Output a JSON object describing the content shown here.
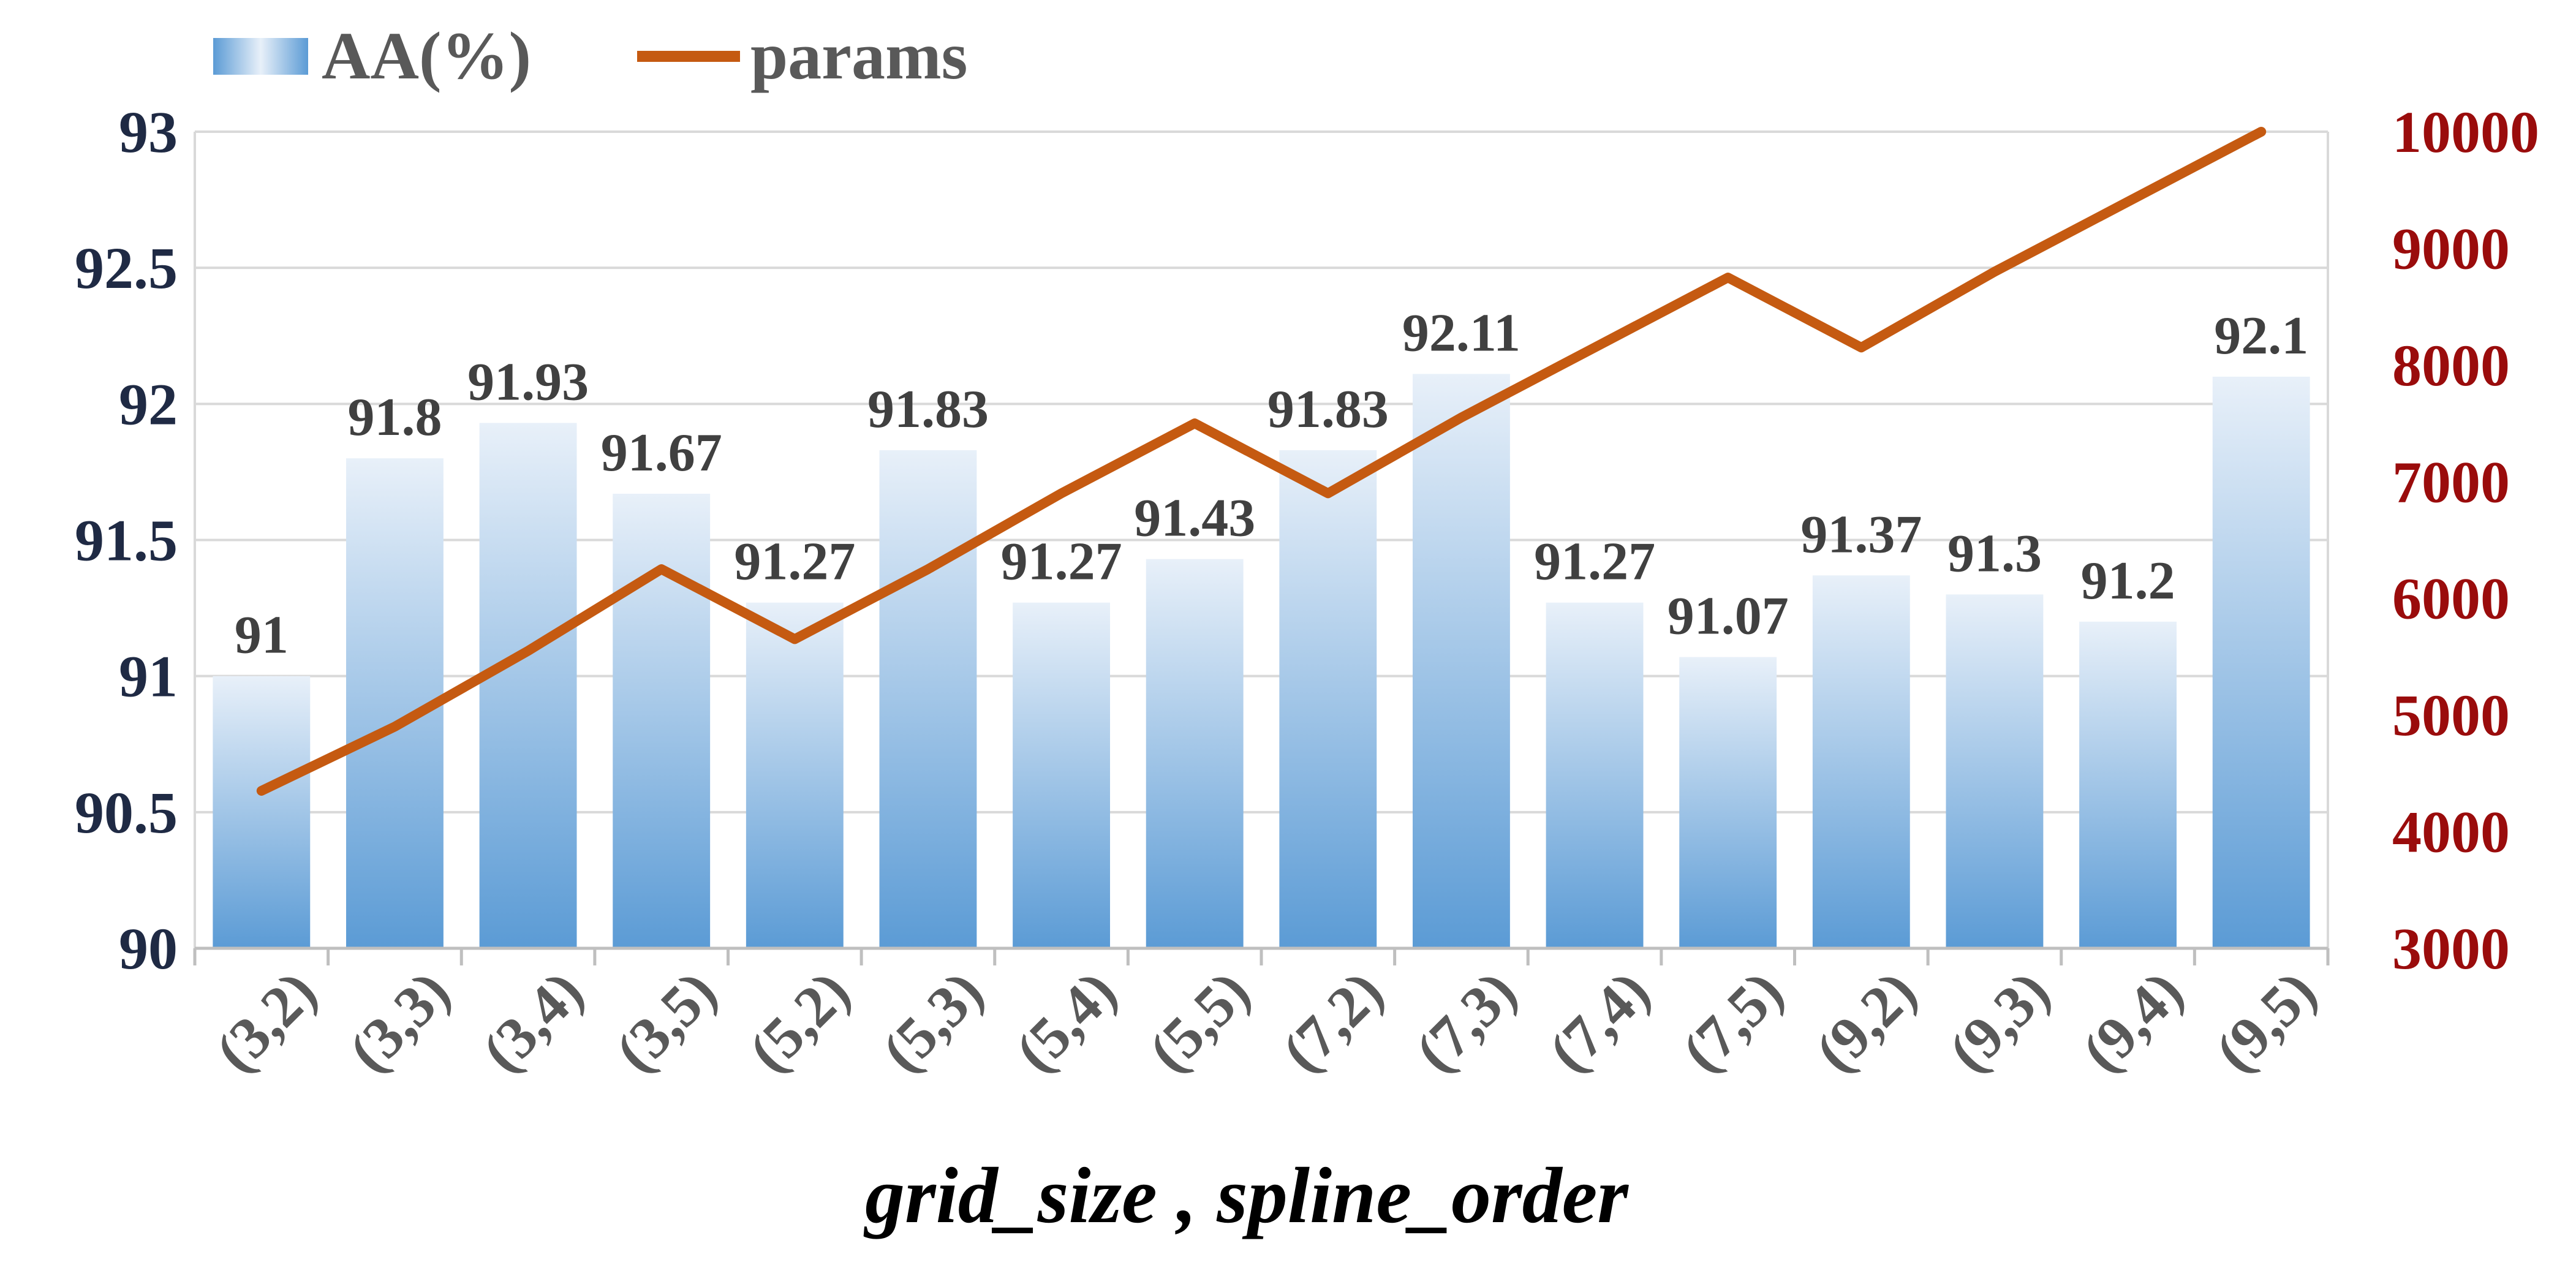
{
  "chart_data": {
    "type": "bar",
    "categories": [
      "(3,2)",
      "(3,3)",
      "(3,4)",
      "(3,5)",
      "(5,2)",
      "(5,3)",
      "(5,4)",
      "(5,5)",
      "(7,2)",
      "(7,3)",
      "(7,4)",
      "(7,5)",
      "(9,2)",
      "(9,3)",
      "(9,4)",
      "(9,5)"
    ],
    "series": [
      {
        "name": "AA(%)",
        "type": "bar",
        "axis": "left",
        "values": [
          91,
          91.8,
          91.93,
          91.67,
          91.27,
          91.83,
          91.27,
          91.43,
          91.83,
          92.11,
          91.27,
          91.07,
          91.37,
          91.3,
          91.2,
          92.1
        ],
        "labels": [
          "91",
          "91.8",
          "91.93",
          "91.67",
          "91.27",
          "91.83",
          "91.27",
          "91.43",
          "91.83",
          "92.11",
          "91.27",
          "91.07",
          "91.37",
          "91.3",
          "91.2",
          "92.1"
        ]
      },
      {
        "name": "params",
        "type": "line",
        "axis": "right",
        "values": [
          4350,
          4900,
          5550,
          6250,
          5650,
          6250,
          6900,
          7500,
          6900,
          7550,
          8150,
          8750,
          8150,
          8800,
          9400,
          10000
        ]
      }
    ],
    "xlabel": "grid_size ,  spline_order",
    "y_left": {
      "lim": [
        90,
        93
      ],
      "ticks": [
        "90",
        "90.5",
        "91",
        "91.5",
        "92",
        "92.5",
        "93"
      ]
    },
    "y_right": {
      "lim": [
        3000,
        10000
      ],
      "ticks": [
        "3000",
        "4000",
        "5000",
        "6000",
        "7000",
        "8000",
        "9000",
        "10000"
      ]
    },
    "grid": true,
    "legend_position": "top-left",
    "colors": {
      "bar_top": "#e8f0f9",
      "bar_bottom": "#5b9bd5",
      "line": "#c55a11",
      "left_axis_text": "#1f2a44",
      "right_axis_text": "#9a0c0c",
      "gridline": "#d9d9d9"
    }
  }
}
